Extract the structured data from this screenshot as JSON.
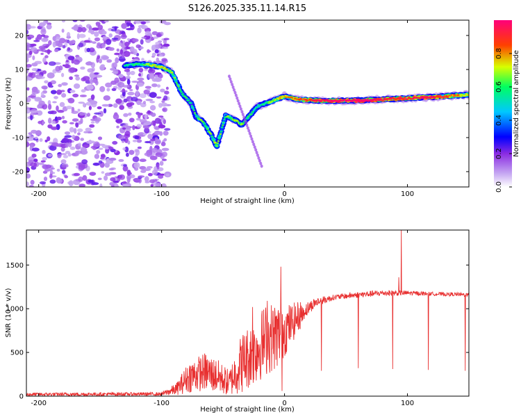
{
  "title": "S126.2025.335.11.14.R15",
  "chart_data": [
    {
      "type": "heatmap",
      "panel": "spectrogram",
      "xlabel": "Height of straight line (km)",
      "ylabel": "Frequency (Hz)",
      "xlim": [
        -210,
        150
      ],
      "ylim": [
        -24.5,
        24.5
      ],
      "xticks": [
        -200,
        -100,
        0,
        100
      ],
      "yticks": [
        -20,
        -10,
        0,
        10,
        20
      ],
      "colorbar": {
        "label": "Normalized spectral amplitude",
        "range": [
          0,
          1
        ],
        "ticks": [
          "0.0",
          "0.2",
          "0.4",
          "0.6",
          "0.8"
        ],
        "colors": [
          "#ffffff",
          "#b68ef0",
          "#7a1ce0",
          "#0000ff",
          "#00c8ff",
          "#00ff80",
          "#ffe000",
          "#ff5000",
          "#ff0070"
        ]
      },
      "noise_region": {
        "x_from": -210,
        "x_to": -95,
        "amplitude": "0.05-0.3"
      },
      "ridge": [
        {
          "x": -130,
          "f": 11.2,
          "a": 0.3
        },
        {
          "x": -120,
          "f": 11.6,
          "a": 0.35
        },
        {
          "x": -110,
          "f": 11.4,
          "a": 0.45
        },
        {
          "x": -100,
          "f": 10.8,
          "a": 0.5
        },
        {
          "x": -92,
          "f": 9.3,
          "a": 0.45
        },
        {
          "x": -88,
          "f": 6.5,
          "a": 0.4
        },
        {
          "x": -84,
          "f": 3.2,
          "a": 0.35
        },
        {
          "x": -76,
          "f": 0.0,
          "a": 0.35
        },
        {
          "x": -72,
          "f": -3.8,
          "a": 0.38
        },
        {
          "x": -66,
          "f": -5.4,
          "a": 0.4
        },
        {
          "x": -60,
          "f": -9.0,
          "a": 0.4
        },
        {
          "x": -55,
          "f": -12.6,
          "a": 0.45
        },
        {
          "x": -48,
          "f": -3.6,
          "a": 0.38
        },
        {
          "x": -40,
          "f": -4.9,
          "a": 0.45
        },
        {
          "x": -35,
          "f": -6.3,
          "a": 0.4
        },
        {
          "x": -22,
          "f": -0.8,
          "a": 0.3
        },
        {
          "x": -12,
          "f": 0.5,
          "a": 0.4
        },
        {
          "x": 0,
          "f": 2.2,
          "a": 0.55
        },
        {
          "x": 10,
          "f": 1.2,
          "a": 0.6
        },
        {
          "x": 30,
          "f": 0.8,
          "a": 0.75
        },
        {
          "x": 60,
          "f": 0.9,
          "a": 0.8
        },
        {
          "x": 90,
          "f": 1.4,
          "a": 0.7
        },
        {
          "x": 120,
          "f": 1.9,
          "a": 0.72
        },
        {
          "x": 150,
          "f": 2.6,
          "a": 0.5
        }
      ]
    },
    {
      "type": "line",
      "panel": "snr",
      "xlabel": "Height of straight line (km)",
      "ylabel": "SNR (10 * v/v)",
      "xlim": [
        -210,
        150
      ],
      "ylim": [
        0,
        1900
      ],
      "xticks": [
        -200,
        -100,
        0,
        100
      ],
      "yticks": [
        0,
        500,
        1000,
        1500
      ],
      "color": "#e83030",
      "envelope": [
        {
          "x": -210,
          "mean": 20,
          "spread": 20
        },
        {
          "x": -100,
          "mean": 25,
          "spread": 20
        },
        {
          "x": -88,
          "mean": 80,
          "spread": 70
        },
        {
          "x": -78,
          "mean": 220,
          "spread": 180
        },
        {
          "x": -65,
          "mean": 280,
          "spread": 220
        },
        {
          "x": -55,
          "mean": 230,
          "spread": 200
        },
        {
          "x": -45,
          "mean": 150,
          "spread": 150
        },
        {
          "x": -35,
          "mean": 380,
          "spread": 350
        },
        {
          "x": -25,
          "mean": 500,
          "spread": 380
        },
        {
          "x": -15,
          "mean": 650,
          "spread": 420
        },
        {
          "x": -5,
          "mean": 700,
          "spread": 380
        },
        {
          "x": 5,
          "mean": 820,
          "spread": 240
        },
        {
          "x": 15,
          "mean": 960,
          "spread": 140
        },
        {
          "x": 25,
          "mean": 1070,
          "spread": 80
        },
        {
          "x": 40,
          "mean": 1130,
          "spread": 45
        },
        {
          "x": 60,
          "mean": 1160,
          "spread": 50
        },
        {
          "x": 80,
          "mean": 1180,
          "spread": 50
        },
        {
          "x": 100,
          "mean": 1180,
          "spread": 40
        },
        {
          "x": 120,
          "mean": 1170,
          "spread": 30
        },
        {
          "x": 150,
          "mean": 1160,
          "spread": 30
        }
      ],
      "spikes": [
        {
          "x": -3,
          "y": 1480
        },
        {
          "x": -14,
          "y": 1090
        },
        {
          "x": -26,
          "y": 1020
        },
        {
          "x": 95,
          "y": 1900
        },
        {
          "x": 93,
          "y": 1360
        }
      ],
      "dips": [
        {
          "x": -2,
          "y": 60
        },
        {
          "x": 30,
          "y": 290
        },
        {
          "x": 60,
          "y": 320
        },
        {
          "x": 88,
          "y": 310
        },
        {
          "x": 117,
          "y": 300
        },
        {
          "x": 147,
          "y": 290
        }
      ]
    }
  ]
}
